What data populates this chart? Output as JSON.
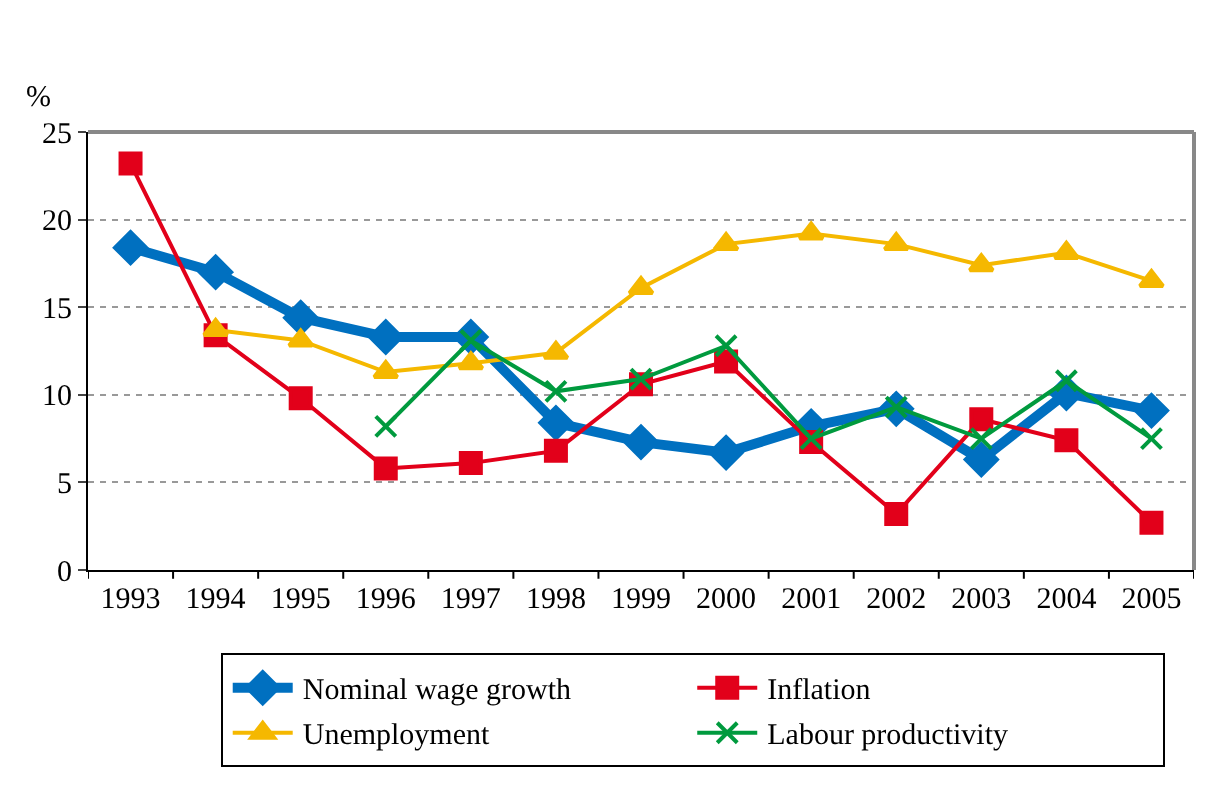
{
  "chart_data": {
    "type": "line",
    "ylabel": "%",
    "categories": [
      "1993",
      "1994",
      "1995",
      "1996",
      "1997",
      "1998",
      "1999",
      "2000",
      "2001",
      "2002",
      "2003",
      "2004",
      "2005"
    ],
    "series": [
      {
        "name": "Nominal wage growth",
        "color": "#0070c0",
        "marker": "diamond",
        "values": [
          18.4,
          17,
          14.4,
          13.3,
          13.3,
          8.4,
          7.3,
          6.7,
          8.2,
          9.2,
          6.3,
          10.1,
          9.1
        ]
      },
      {
        "name": "Inflation",
        "color": "#e2001a",
        "marker": "square",
        "values": [
          23.2,
          13.4,
          9.8,
          5.8,
          6.1,
          6.8,
          10.6,
          11.9,
          7.3,
          3.2,
          8.6,
          7.4,
          2.7
        ]
      },
      {
        "name": "Unemployment",
        "color": "#f5b800",
        "marker": "triangle",
        "values": [
          null,
          13.7,
          13.1,
          11.3,
          11.8,
          12.4,
          16.1,
          18.6,
          19.2,
          18.6,
          17.4,
          18.1,
          16.5
        ]
      },
      {
        "name": "Labour productivity",
        "color": "#009a3e",
        "marker": "cross",
        "values": [
          null,
          null,
          null,
          8.2,
          13.1,
          10.2,
          10.9,
          12.8,
          7.5,
          9.3,
          7.5,
          10.8,
          7.5
        ]
      }
    ],
    "ylim": [
      0,
      25
    ],
    "yticks": [
      0,
      5,
      10,
      15,
      20,
      25
    ],
    "grid": "y",
    "legend": "bottom"
  }
}
